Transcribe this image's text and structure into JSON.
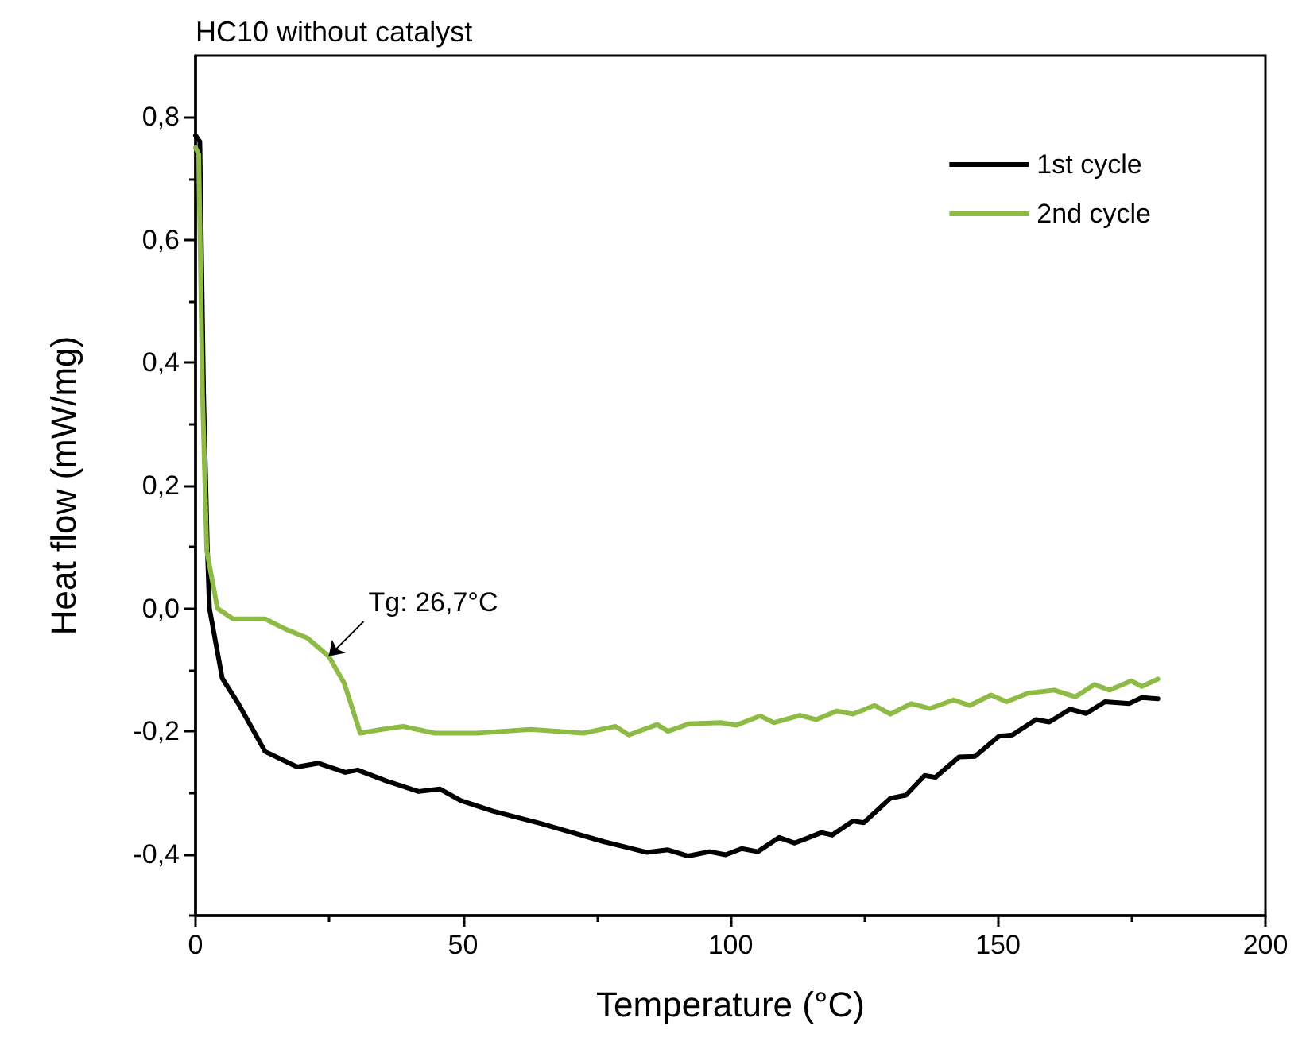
{
  "chart_data": {
    "type": "line",
    "title": "HC10 without catalyst",
    "xlabel": "Temperature (°C)",
    "ylabel": "Heat flow (mW/mg)",
    "xlim": [
      0,
      200
    ],
    "ylim": [
      -0.5,
      0.9
    ],
    "xticks": [
      0,
      {
        "value": 25,
        "label": null
      },
      50,
      {
        "value": 75,
        "label": null
      },
      100,
      {
        "value": 125,
        "label": null
      },
      150,
      {
        "value": 175,
        "label": null
      },
      200
    ],
    "yticks": [
      {
        "value": -0.5,
        "label": null
      },
      {
        "value": -0.4,
        "label": "-0,4"
      },
      {
        "value": -0.3,
        "label": null
      },
      {
        "value": -0.2,
        "label": "-0,2"
      },
      {
        "value": -0.1,
        "label": null
      },
      {
        "value": 0,
        "label": "0,0"
      },
      {
        "value": 0.1,
        "label": null
      },
      {
        "value": 0.2,
        "label": "0,2"
      },
      {
        "value": 0.3,
        "label": null
      },
      {
        "value": 0.4,
        "label": "0,4"
      },
      {
        "value": 0.5,
        "label": null
      },
      {
        "value": 0.6,
        "label": "0,6"
      },
      {
        "value": 0.7,
        "label": null
      },
      {
        "value": 0.8,
        "label": "0,8"
      }
    ],
    "grid": false,
    "legend": "top right",
    "line_style": "solid",
    "marker": "none",
    "annotations": [
      {
        "text": "Tg: 26,7°C",
        "x": 24.9,
        "y": -0.078
      }
    ],
    "series": [
      {
        "name": "1st cycle",
        "color": "#000000",
        "x": [
          0,
          0.8,
          1.5,
          2.2,
          2.6,
          5,
          8,
          13,
          19,
          23,
          28,
          30.3,
          35.7,
          41.7,
          45.7,
          49.6,
          55.6,
          64.5,
          70.4,
          76.4,
          84.3,
          88.3,
          92.1,
          96.1,
          99.1,
          102.1,
          105.1,
          109.1,
          112,
          117,
          119,
          122.9,
          124.9,
          129.9,
          132.8,
          136.3,
          138.3,
          142.7,
          145.7,
          150.2,
          152.7,
          157.1,
          159.6,
          163.5,
          166.5,
          170,
          174.5,
          176.9,
          179.9
        ],
        "values": [
          0.77,
          0.76,
          0.35,
          0.1,
          0,
          -0.114,
          -0.155,
          -0.233,
          -0.258,
          -0.252,
          -0.267,
          -0.263,
          -0.281,
          -0.298,
          -0.294,
          -0.313,
          -0.33,
          -0.35,
          -0.365,
          -0.38,
          -0.397,
          -0.393,
          -0.403,
          -0.396,
          -0.401,
          -0.391,
          -0.396,
          -0.373,
          -0.382,
          -0.365,
          -0.369,
          -0.346,
          -0.349,
          -0.309,
          -0.304,
          -0.272,
          -0.275,
          -0.242,
          -0.241,
          -0.208,
          -0.206,
          -0.181,
          -0.185,
          -0.164,
          -0.171,
          -0.152,
          -0.155,
          -0.145,
          -0.147
        ]
      },
      {
        "name": "2nd cycle",
        "color": "#8dbb45",
        "x": [
          0,
          0.6,
          1.3,
          2.1,
          4.1,
          7,
          13,
          16.9,
          20.9,
          24.9,
          27.8,
          30.8,
          34.8,
          38.8,
          44.7,
          52.7,
          62.6,
          72.5,
          78.5,
          81,
          86.3,
          88.3,
          92.2,
          98.2,
          101.1,
          105.6,
          108.1,
          113,
          116,
          119.9,
          122.9,
          126.9,
          129.9,
          133.8,
          137.3,
          141.7,
          144.7,
          148.7,
          151.6,
          155.6,
          160.5,
          164.5,
          168,
          170.9,
          174.9,
          176.9,
          179.9
        ],
        "values": [
          0.75,
          0.74,
          0.35,
          0.094,
          0,
          -0.017,
          -0.017,
          -0.034,
          -0.048,
          -0.078,
          -0.122,
          -0.203,
          -0.197,
          -0.192,
          -0.203,
          -0.203,
          -0.197,
          -0.203,
          -0.192,
          -0.206,
          -0.189,
          -0.2,
          -0.188,
          -0.186,
          -0.19,
          -0.175,
          -0.186,
          -0.174,
          -0.181,
          -0.167,
          -0.172,
          -0.158,
          -0.172,
          -0.155,
          -0.163,
          -0.149,
          -0.158,
          -0.141,
          -0.152,
          -0.138,
          -0.133,
          -0.144,
          -0.124,
          -0.133,
          -0.118,
          -0.127,
          -0.115
        ]
      }
    ]
  }
}
